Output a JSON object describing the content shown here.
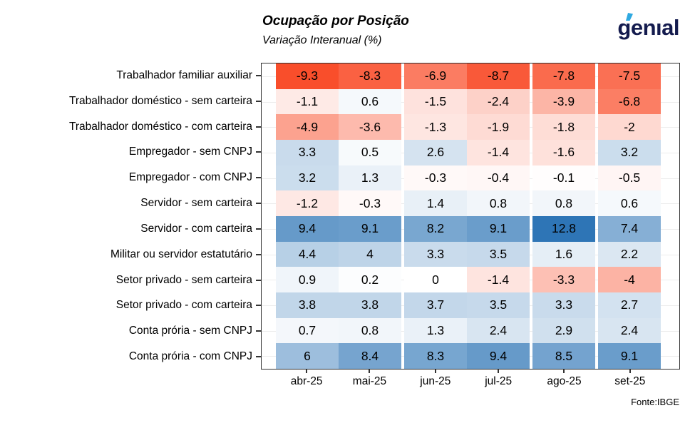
{
  "header": {
    "title": "Ocupação por Posição",
    "subtitle": "Variação Interanual (%)",
    "logo_text": "genıal"
  },
  "footer": {
    "source": "Fonte:IBGE"
  },
  "chart_data": {
    "type": "heatmap",
    "title": "Ocupação por Posição",
    "subtitle": "Variação Interanual (%)",
    "columns": [
      "abr-25",
      "mai-25",
      "jun-25",
      "jul-25",
      "ago-25",
      "set-25"
    ],
    "rows": [
      "Trabalhador familiar auxiliar",
      "Trabalhador doméstico - sem carteira",
      "Trabalhador doméstico - com carteira",
      "Empregador - sem CNPJ",
      "Empregador - com CNPJ",
      "Servidor - sem carteira",
      "Servidor - com carteira",
      "Militar ou servidor estatutário",
      "Setor privado - sem carteira",
      "Setor privado - com carteira",
      "Conta prória - sem CNPJ",
      "Conta prória - com CNPJ"
    ],
    "values": [
      [
        -9.3,
        -8.3,
        -6.9,
        -8.7,
        -7.8,
        -7.5
      ],
      [
        -1.1,
        0.6,
        -1.5,
        -2.4,
        -3.9,
        -6.8
      ],
      [
        -4.9,
        -3.6,
        -1.3,
        -1.9,
        -1.8,
        -2
      ],
      [
        3.3,
        0.5,
        2.6,
        -1.4,
        -1.6,
        3.2
      ],
      [
        3.2,
        1.3,
        -0.3,
        -0.4,
        -0.1,
        -0.5
      ],
      [
        -1.2,
        -0.3,
        1.4,
        0.8,
        0.8,
        0.6
      ],
      [
        9.4,
        9.1,
        8.2,
        9.1,
        12.8,
        7.4
      ],
      [
        4.4,
        4,
        3.3,
        3.5,
        1.6,
        2.2
      ],
      [
        0.9,
        0.2,
        0,
        -1.4,
        -3.3,
        -4
      ],
      [
        3.8,
        3.8,
        3.7,
        3.5,
        3.3,
        2.7
      ],
      [
        0.7,
        0.8,
        1.3,
        2.4,
        2.9,
        2.4
      ],
      [
        6,
        8.4,
        8.3,
        9.4,
        8.5,
        9.1
      ]
    ],
    "color_scale": {
      "zero_color": "#FFFFFF",
      "negative_max_color": "#F94E2B",
      "positive_max_color": "#2E75B6",
      "domain": [
        -9.3,
        12.8
      ]
    },
    "grid": "horizontal-light-gray",
    "legend": "none",
    "source": "Fonte:IBGE",
    "logo_accent_color": "#2FA9E1",
    "logo_navy_color": "#141B4E"
  }
}
